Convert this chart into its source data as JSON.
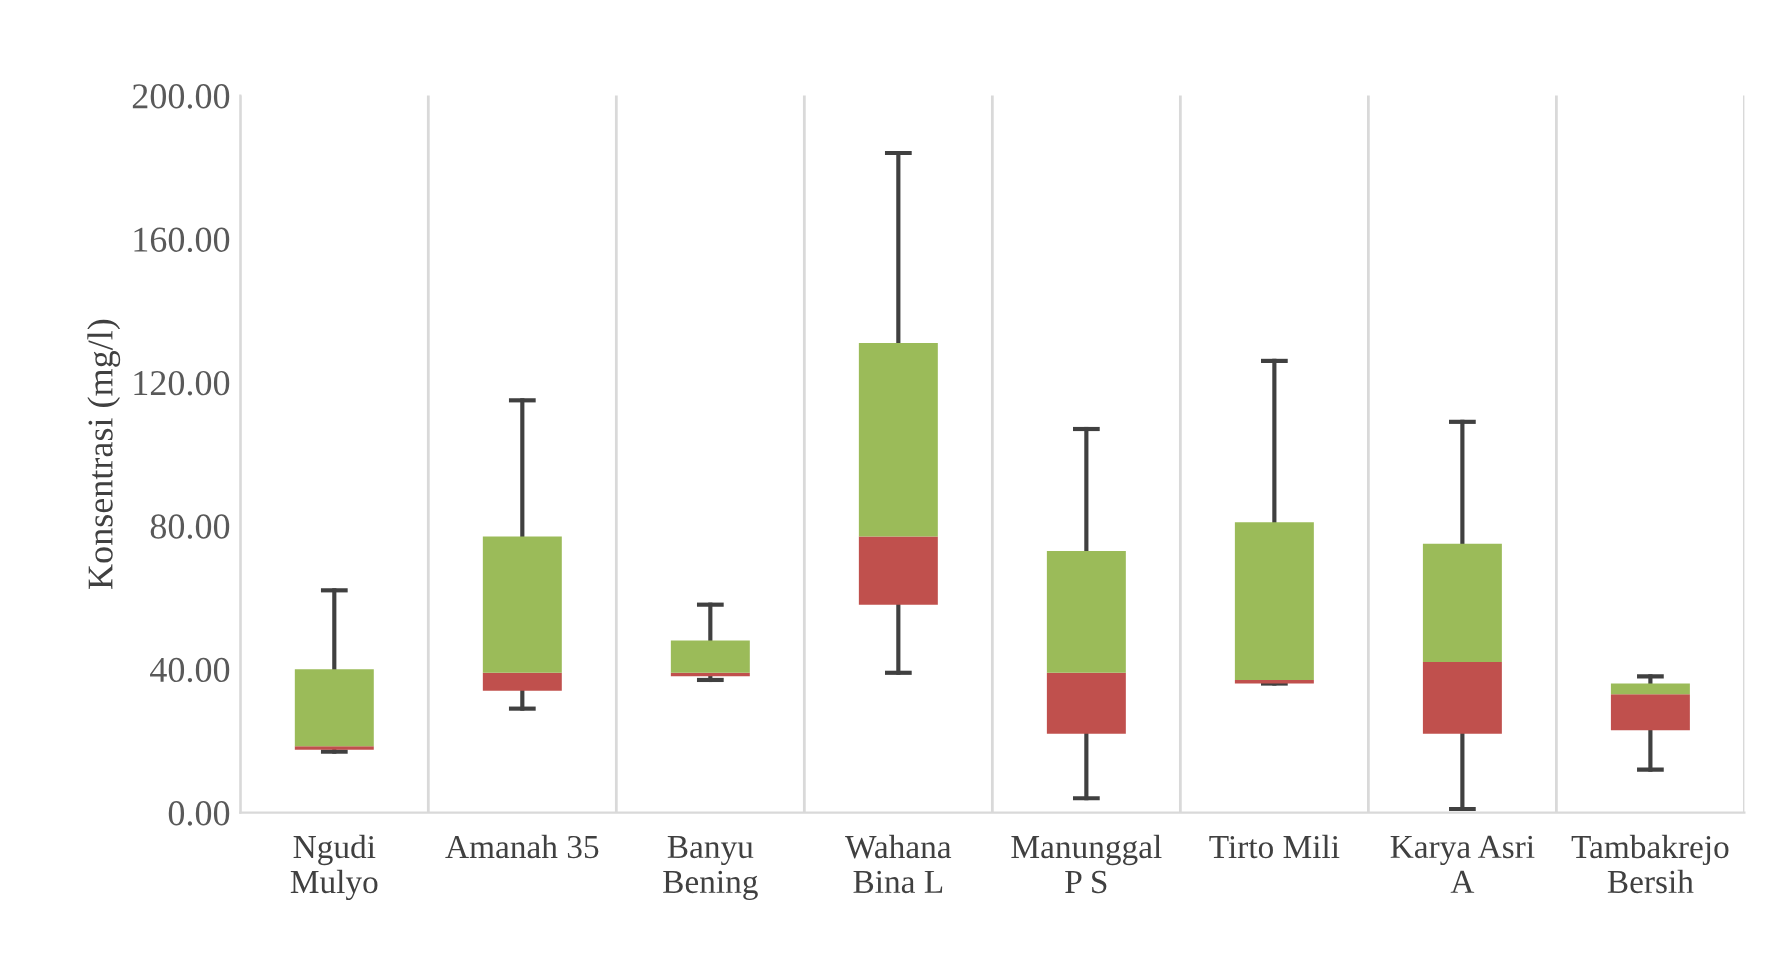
{
  "chart_data": {
    "type": "box",
    "ylabel": "Konsentrasi (mg/l)",
    "categories": [
      "Ngudi\nMulyo",
      "Amanah 35",
      "Banyu\nBening",
      "Wahana\nBina L",
      "Manunggal\nP S",
      "Tirto Mili",
      "Karya Asri\nA",
      "Tambakrejo\nBersih"
    ],
    "colors": [
      [
        "#c0504d",
        "#9bbb59"
      ],
      [
        "#c0504d",
        "#9bbb59"
      ],
      [
        "#c0504d",
        "#9bbb59"
      ],
      [
        "#c0504d",
        "#9bbb59"
      ],
      [
        "#c0504d",
        "#9bbb59"
      ],
      [
        "#c0504d",
        "#9bbb59"
      ],
      [
        "#c0504d",
        "#9bbb59"
      ],
      [
        "#c0504d",
        "#9bbb59"
      ]
    ],
    "boxes": [
      {
        "low": 17,
        "q1": 17.5,
        "median": 18.5,
        "q3": 40,
        "high": 62
      },
      {
        "low": 29,
        "q1": 34,
        "median": 39,
        "q3": 77,
        "high": 115
      },
      {
        "low": 37,
        "q1": 38,
        "median": 39,
        "q3": 48,
        "high": 58
      },
      {
        "low": 39,
        "q1": 58,
        "median": 77,
        "q3": 131,
        "high": 184
      },
      {
        "low": 4,
        "q1": 22,
        "median": 39,
        "q3": 73,
        "high": 107
      },
      {
        "low": 36,
        "q1": 36,
        "median": 37,
        "q3": 81,
        "high": 126
      },
      {
        "low": 1,
        "q1": 22,
        "median": 42,
        "q3": 75,
        "high": 109
      },
      {
        "low": 12,
        "q1": 23,
        "median": 33,
        "q3": 36,
        "high": 38
      }
    ],
    "ylim": [
      0,
      200
    ],
    "yticks": [
      {
        "value": 0,
        "label": "0.00"
      },
      {
        "value": 40,
        "label": "40.00"
      },
      {
        "value": 80,
        "label": "80.00"
      },
      {
        "value": 120,
        "label": "120.00"
      },
      {
        "value": 160,
        "label": "160.00"
      },
      {
        "value": 200,
        "label": "200.00"
      }
    ],
    "grid": "x"
  }
}
